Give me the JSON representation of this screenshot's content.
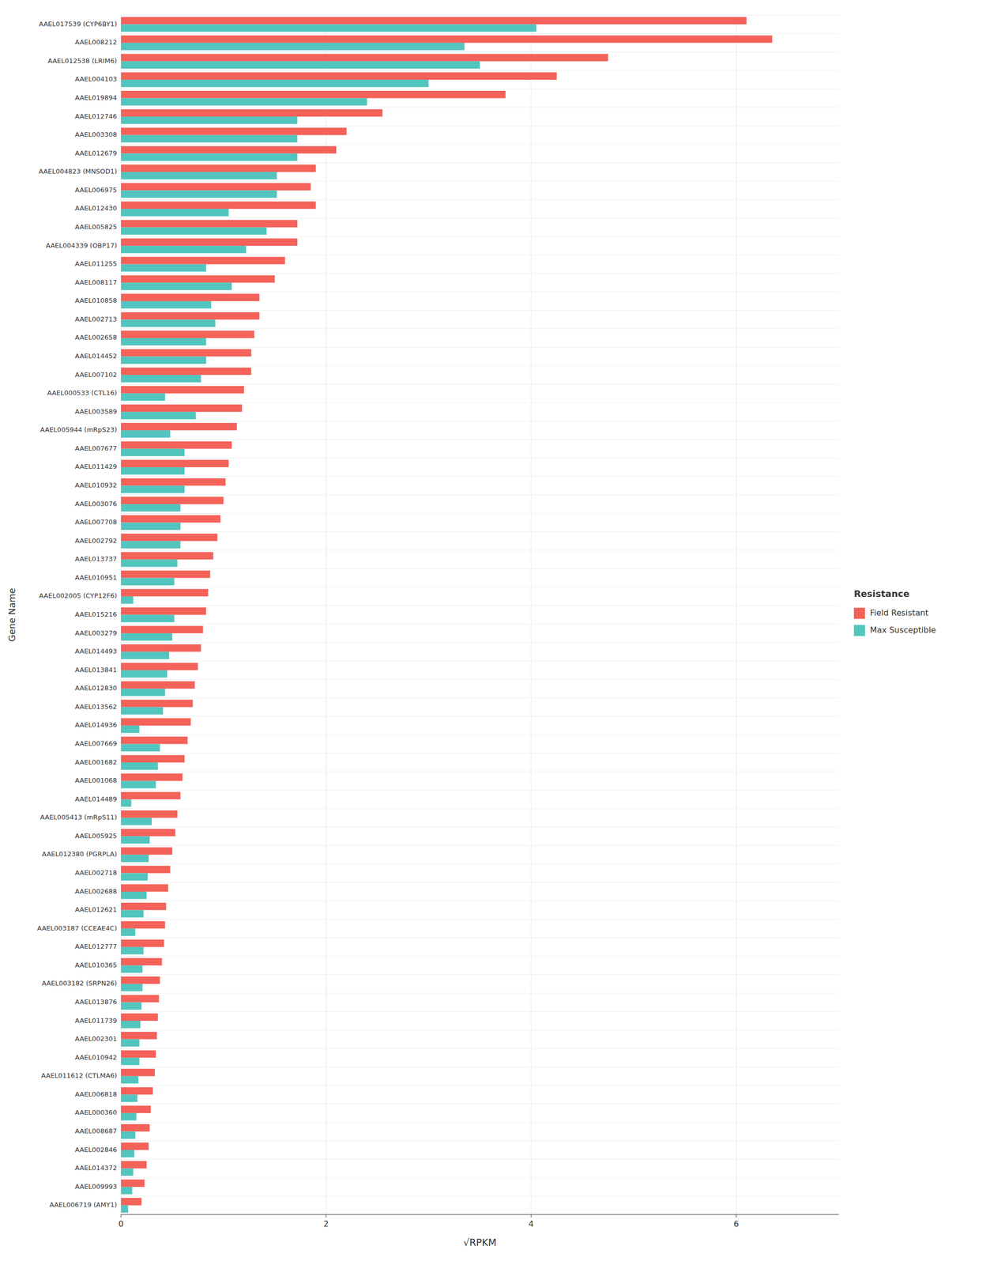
{
  "chart_data": {
    "type": "bar",
    "orientation": "horizontal",
    "xlabel": "√RPKM",
    "ylabel": "Gene Name",
    "legend_title": "Resistance",
    "legend": "right",
    "grid": true,
    "xlim": [
      0,
      7.0
    ],
    "xticks": [
      0,
      2,
      4,
      6
    ],
    "categories": [
      "AAEL017539 (CYP6BY1)",
      "AAEL008212",
      "AAEL012538 (LRIM6)",
      "AAEL004103",
      "AAEL019894",
      "AAEL012746",
      "AAEL003308",
      "AAEL012679",
      "AAEL004823 (MNSOD1)",
      "AAEL006975",
      "AAEL012430",
      "AAEL005825",
      "AAEL004339 (OBP17)",
      "AAEL011255",
      "AAEL008117",
      "AAEL010858",
      "AAEL002713",
      "AAEL002658",
      "AAEL014452",
      "AAEL007102",
      "AAEL000533 (CTL16)",
      "AAEL003589",
      "AAEL005944 (mRpS23)",
      "AAEL007677",
      "AAEL011429",
      "AAEL010932",
      "AAEL003076",
      "AAEL007708",
      "AAEL002792",
      "AAEL013737",
      "AAEL010951",
      "AAEL002005 (CYP12F6)",
      "AAEL015216",
      "AAEL003279",
      "AAEL014493",
      "AAEL013841",
      "AAEL012830",
      "AAEL013562",
      "AAEL014936",
      "AAEL007669",
      "AAEL001682",
      "AAEL001068",
      "AAEL014489",
      "AAEL005413 (mRpS11)",
      "AAEL005925",
      "AAEL012380 (PGRPLA)",
      "AAEL002718",
      "AAEL002688",
      "AAEL012621",
      "AAEL003187 (CCEAE4C)",
      "AAEL012777",
      "AAEL010365",
      "AAEL003182 (SRPN26)",
      "AAEL013876",
      "AAEL011739",
      "AAEL002301",
      "AAEL010942",
      "AAEL011612 (CTLMA6)",
      "AAEL006818",
      "AAEL000360",
      "AAEL008687",
      "AAEL002846",
      "AAEL014372",
      "AAEL009993",
      "AAEL006719 (AMY1)"
    ],
    "series": [
      {
        "name": "Field Resistant",
        "color": "#F4625A",
        "values": [
          6.1,
          6.35,
          4.75,
          4.25,
          3.75,
          2.55,
          2.2,
          2.1,
          1.9,
          1.85,
          1.9,
          1.72,
          1.72,
          1.6,
          1.5,
          1.35,
          1.35,
          1.3,
          1.27,
          1.27,
          1.2,
          1.18,
          1.13,
          1.08,
          1.05,
          1.02,
          1.0,
          0.97,
          0.94,
          0.9,
          0.87,
          0.85,
          0.83,
          0.8,
          0.78,
          0.75,
          0.72,
          0.7,
          0.68,
          0.65,
          0.62,
          0.6,
          0.58,
          0.55,
          0.53,
          0.5,
          0.48,
          0.46,
          0.44,
          0.43,
          0.42,
          0.4,
          0.38,
          0.37,
          0.36,
          0.35,
          0.34,
          0.33,
          0.31,
          0.29,
          0.28,
          0.27,
          0.25,
          0.23,
          0.2
        ]
      },
      {
        "name": "Max Susceptible",
        "color": "#52C5BE",
        "values": [
          4.05,
          3.35,
          3.5,
          3.0,
          2.4,
          1.72,
          1.72,
          1.72,
          1.52,
          1.52,
          1.05,
          1.42,
          1.22,
          0.83,
          1.08,
          0.88,
          0.92,
          0.83,
          0.83,
          0.78,
          0.43,
          0.73,
          0.48,
          0.62,
          0.62,
          0.62,
          0.58,
          0.58,
          0.58,
          0.55,
          0.52,
          0.12,
          0.52,
          0.5,
          0.47,
          0.45,
          0.43,
          0.41,
          0.18,
          0.38,
          0.36,
          0.34,
          0.1,
          0.3,
          0.28,
          0.27,
          0.26,
          0.25,
          0.22,
          0.14,
          0.22,
          0.21,
          0.21,
          0.2,
          0.19,
          0.18,
          0.18,
          0.17,
          0.16,
          0.15,
          0.14,
          0.13,
          0.12,
          0.11,
          0.07
        ]
      }
    ]
  }
}
